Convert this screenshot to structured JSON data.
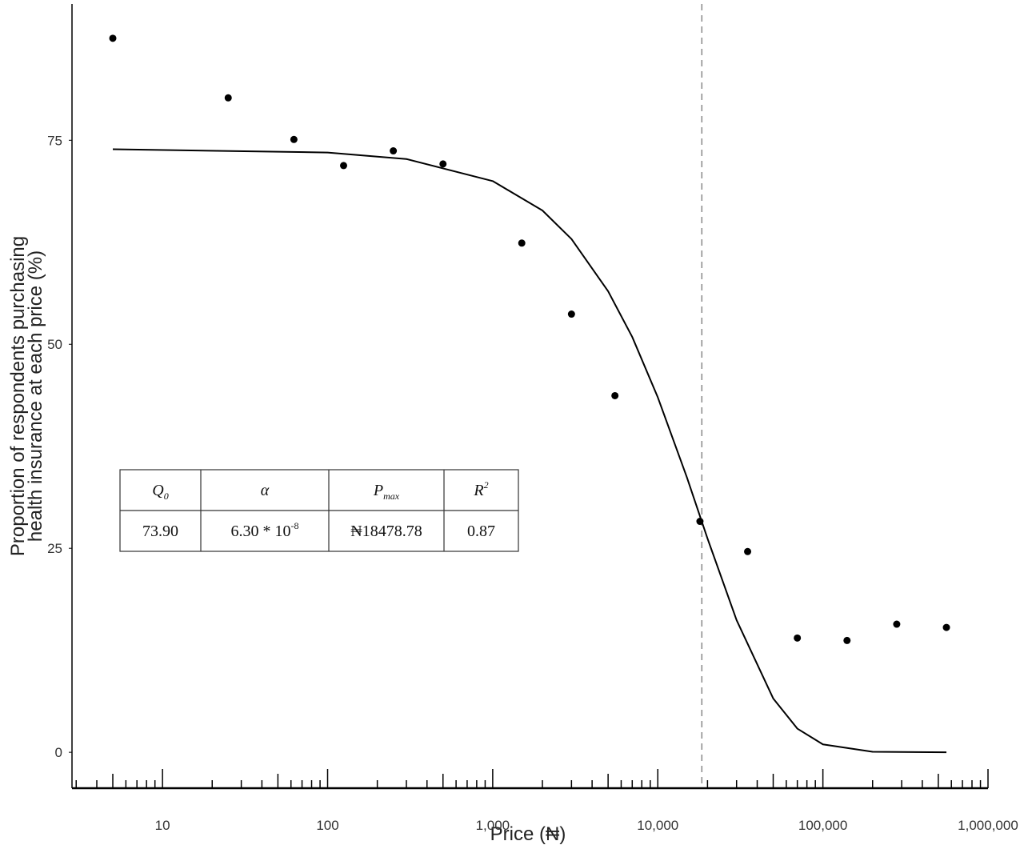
{
  "chart_data": {
    "type": "scatter",
    "xlabel": "Price (₦)",
    "ylabel": [
      "Proportion of respondents purchasing",
      "health insurance at each price (%)"
    ],
    "log_x": true,
    "xlim": [
      2.83,
      1000000
    ],
    "ylim": [
      -4.4,
      91.7
    ],
    "xticks": [
      {
        "value": 10,
        "label": "10"
      },
      {
        "value": 100,
        "label": "100"
      },
      {
        "value": 1000,
        "label": "1,000"
      },
      {
        "value": 10000,
        "label": "10,000"
      },
      {
        "value": 100000,
        "label": "100,000"
      },
      {
        "value": 1000000,
        "label": "1,000,000"
      }
    ],
    "xminorticks": [
      3,
      4,
      5,
      6,
      7,
      8,
      9,
      20,
      30,
      40,
      50,
      60,
      70,
      80,
      90,
      200,
      300,
      400,
      500,
      600,
      700,
      800,
      900,
      2000,
      3000,
      4000,
      5000,
      6000,
      7000,
      8000,
      9000,
      20000,
      30000,
      40000,
      50000,
      60000,
      70000,
      80000,
      90000,
      200000,
      300000,
      400000,
      500000,
      600000,
      700000,
      800000,
      900000
    ],
    "yticks": [
      0,
      25,
      50,
      75
    ],
    "series": [
      {
        "kind": "points",
        "color": "#000000",
        "x": [
          5,
          25,
          62.5,
          125,
          250,
          500,
          1500,
          3000,
          5500,
          18000,
          35000,
          70000,
          140000,
          280000,
          560000
        ],
        "values": [
          87.5,
          80.2,
          75.1,
          71.9,
          73.7,
          72.1,
          62.4,
          53.7,
          43.7,
          28.3,
          24.6,
          14.0,
          13.7,
          15.7,
          15.3
        ]
      },
      {
        "kind": "line",
        "color": "#000000",
        "x": [
          5,
          100,
          300,
          1000,
          2000,
          3000,
          5000,
          7000,
          10000,
          15000,
          20000,
          30000,
          50000,
          70000,
          100000,
          200000,
          560000
        ],
        "values": [
          73.9,
          73.5,
          72.7,
          70.0,
          66.4,
          62.9,
          56.5,
          50.9,
          43.5,
          33.7,
          26.2,
          16.2,
          6.6,
          2.9,
          0.97,
          0.06,
          0
        ]
      }
    ],
    "pmax_line": 18478.78
  },
  "table": {
    "headers": [
      {
        "text": "Q",
        "sub": "0"
      },
      {
        "text": "α"
      },
      {
        "text": "P",
        "sub": "max"
      },
      {
        "text": "R",
        "sup": "2"
      }
    ],
    "values": [
      {
        "text": "73.90"
      },
      {
        "text": "6.30 * 10",
        "sup": "-8"
      },
      {
        "text": "₦18478.78"
      },
      {
        "text": "0.87"
      }
    ]
  }
}
